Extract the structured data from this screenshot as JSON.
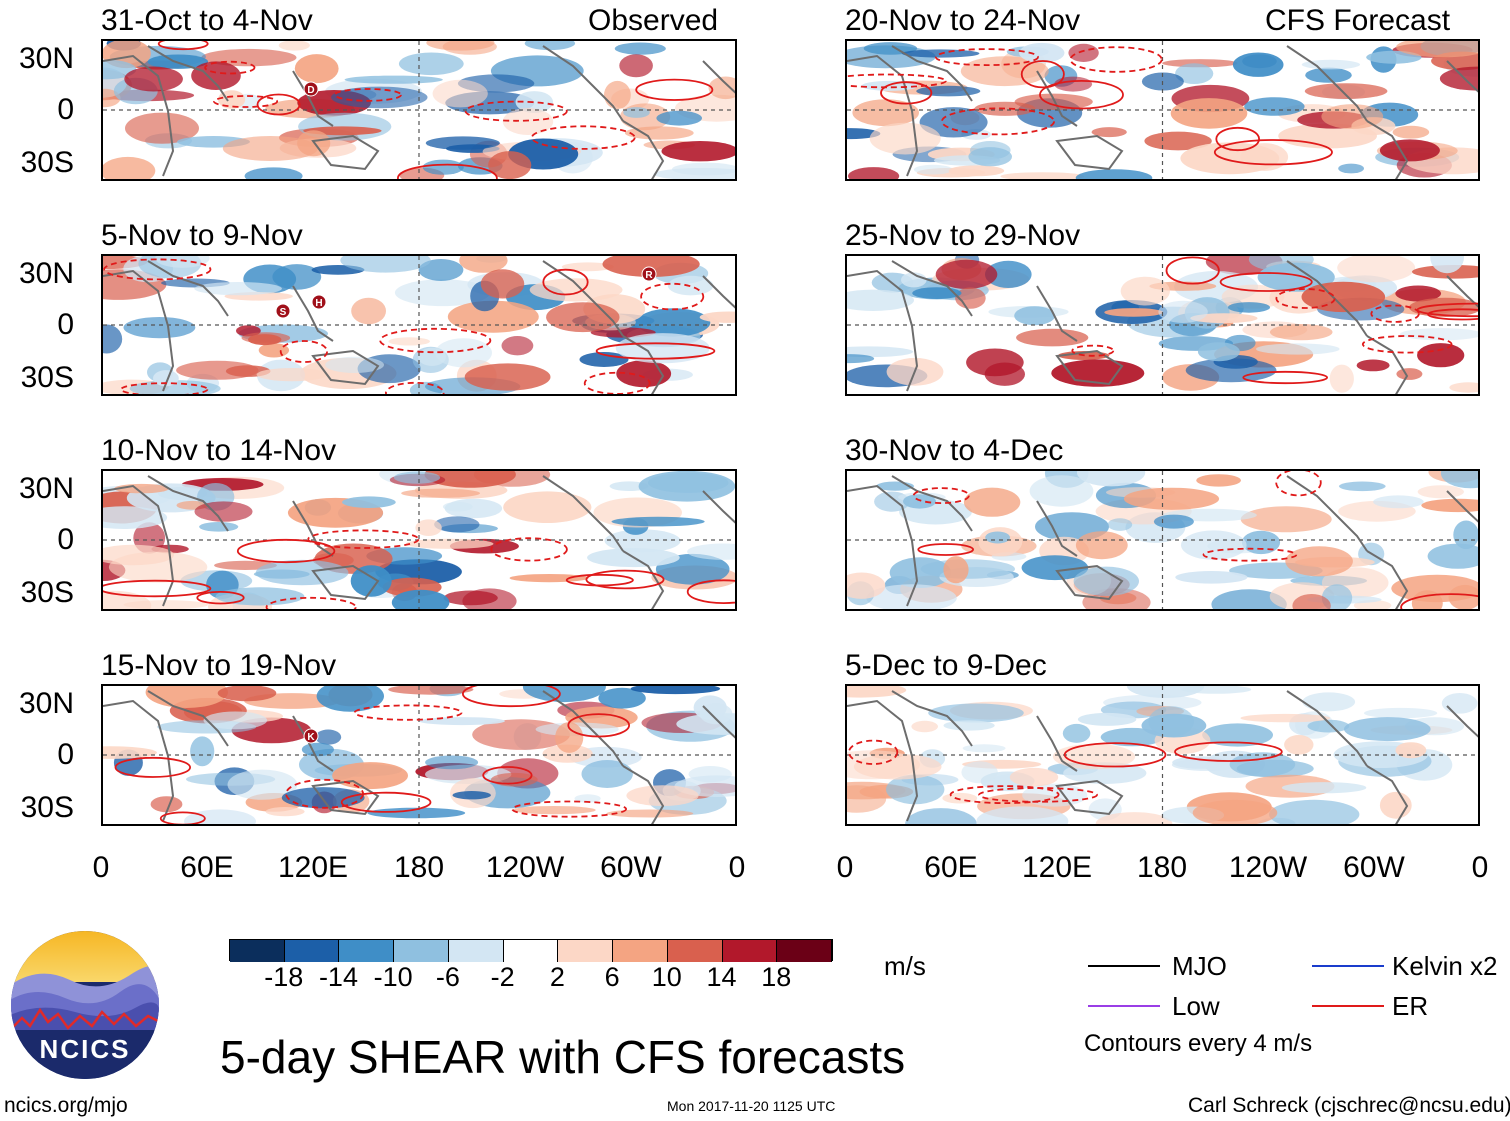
{
  "header": {
    "observed_label": "Observed",
    "forecast_label": "CFS Forecast"
  },
  "panels_left": [
    {
      "title": "31-Oct to 4-Nov",
      "markers": [
        "D"
      ]
    },
    {
      "title": "5-Nov to 9-Nov",
      "markers": [
        "S",
        "H",
        "R"
      ]
    },
    {
      "title": "10-Nov to 14-Nov",
      "markers": []
    },
    {
      "title": "15-Nov to 19-Nov",
      "markers": [
        "K"
      ]
    }
  ],
  "panels_right": [
    {
      "title": "20-Nov to 24-Nov"
    },
    {
      "title": "25-Nov to 29-Nov"
    },
    {
      "title": "30-Nov to 4-Dec"
    },
    {
      "title": "5-Dec to 9-Dec"
    }
  ],
  "lat_labels": [
    "30N",
    "0",
    "30S"
  ],
  "lon_labels": [
    "0",
    "60E",
    "120E",
    "180",
    "120W",
    "60W",
    "0"
  ],
  "colorbar": {
    "colors": [
      "#0b2e5c",
      "#1c5fa8",
      "#3f8ec7",
      "#8fc0e0",
      "#d3e6f3",
      "#ffffff",
      "#fcd7c6",
      "#f4a482",
      "#d9604e",
      "#b2182b",
      "#6b0016"
    ],
    "labels": [
      "-18",
      "-14",
      "-10",
      "-6",
      "-2",
      "2",
      "6",
      "10",
      "14",
      "18"
    ],
    "units": "m/s"
  },
  "legend": {
    "items": [
      {
        "label": "MJO",
        "color": "#000000"
      },
      {
        "label": "Kelvin x2",
        "color": "#1a3ccc"
      },
      {
        "label": "Low",
        "color": "#9a3ee6"
      },
      {
        "label": "ER",
        "color": "#e01a1a"
      }
    ],
    "contour_note": "Contours every 4 m/s"
  },
  "logo": {
    "text": "NCICS"
  },
  "main_title": "5-day SHEAR with CFS forecasts",
  "footer": {
    "url": "ncics.org/mjo",
    "timestamp": "Mon 2017-11-20 1125 UTC",
    "credit": "Carl Schreck (cjschrec@ncsu.edu)"
  }
}
